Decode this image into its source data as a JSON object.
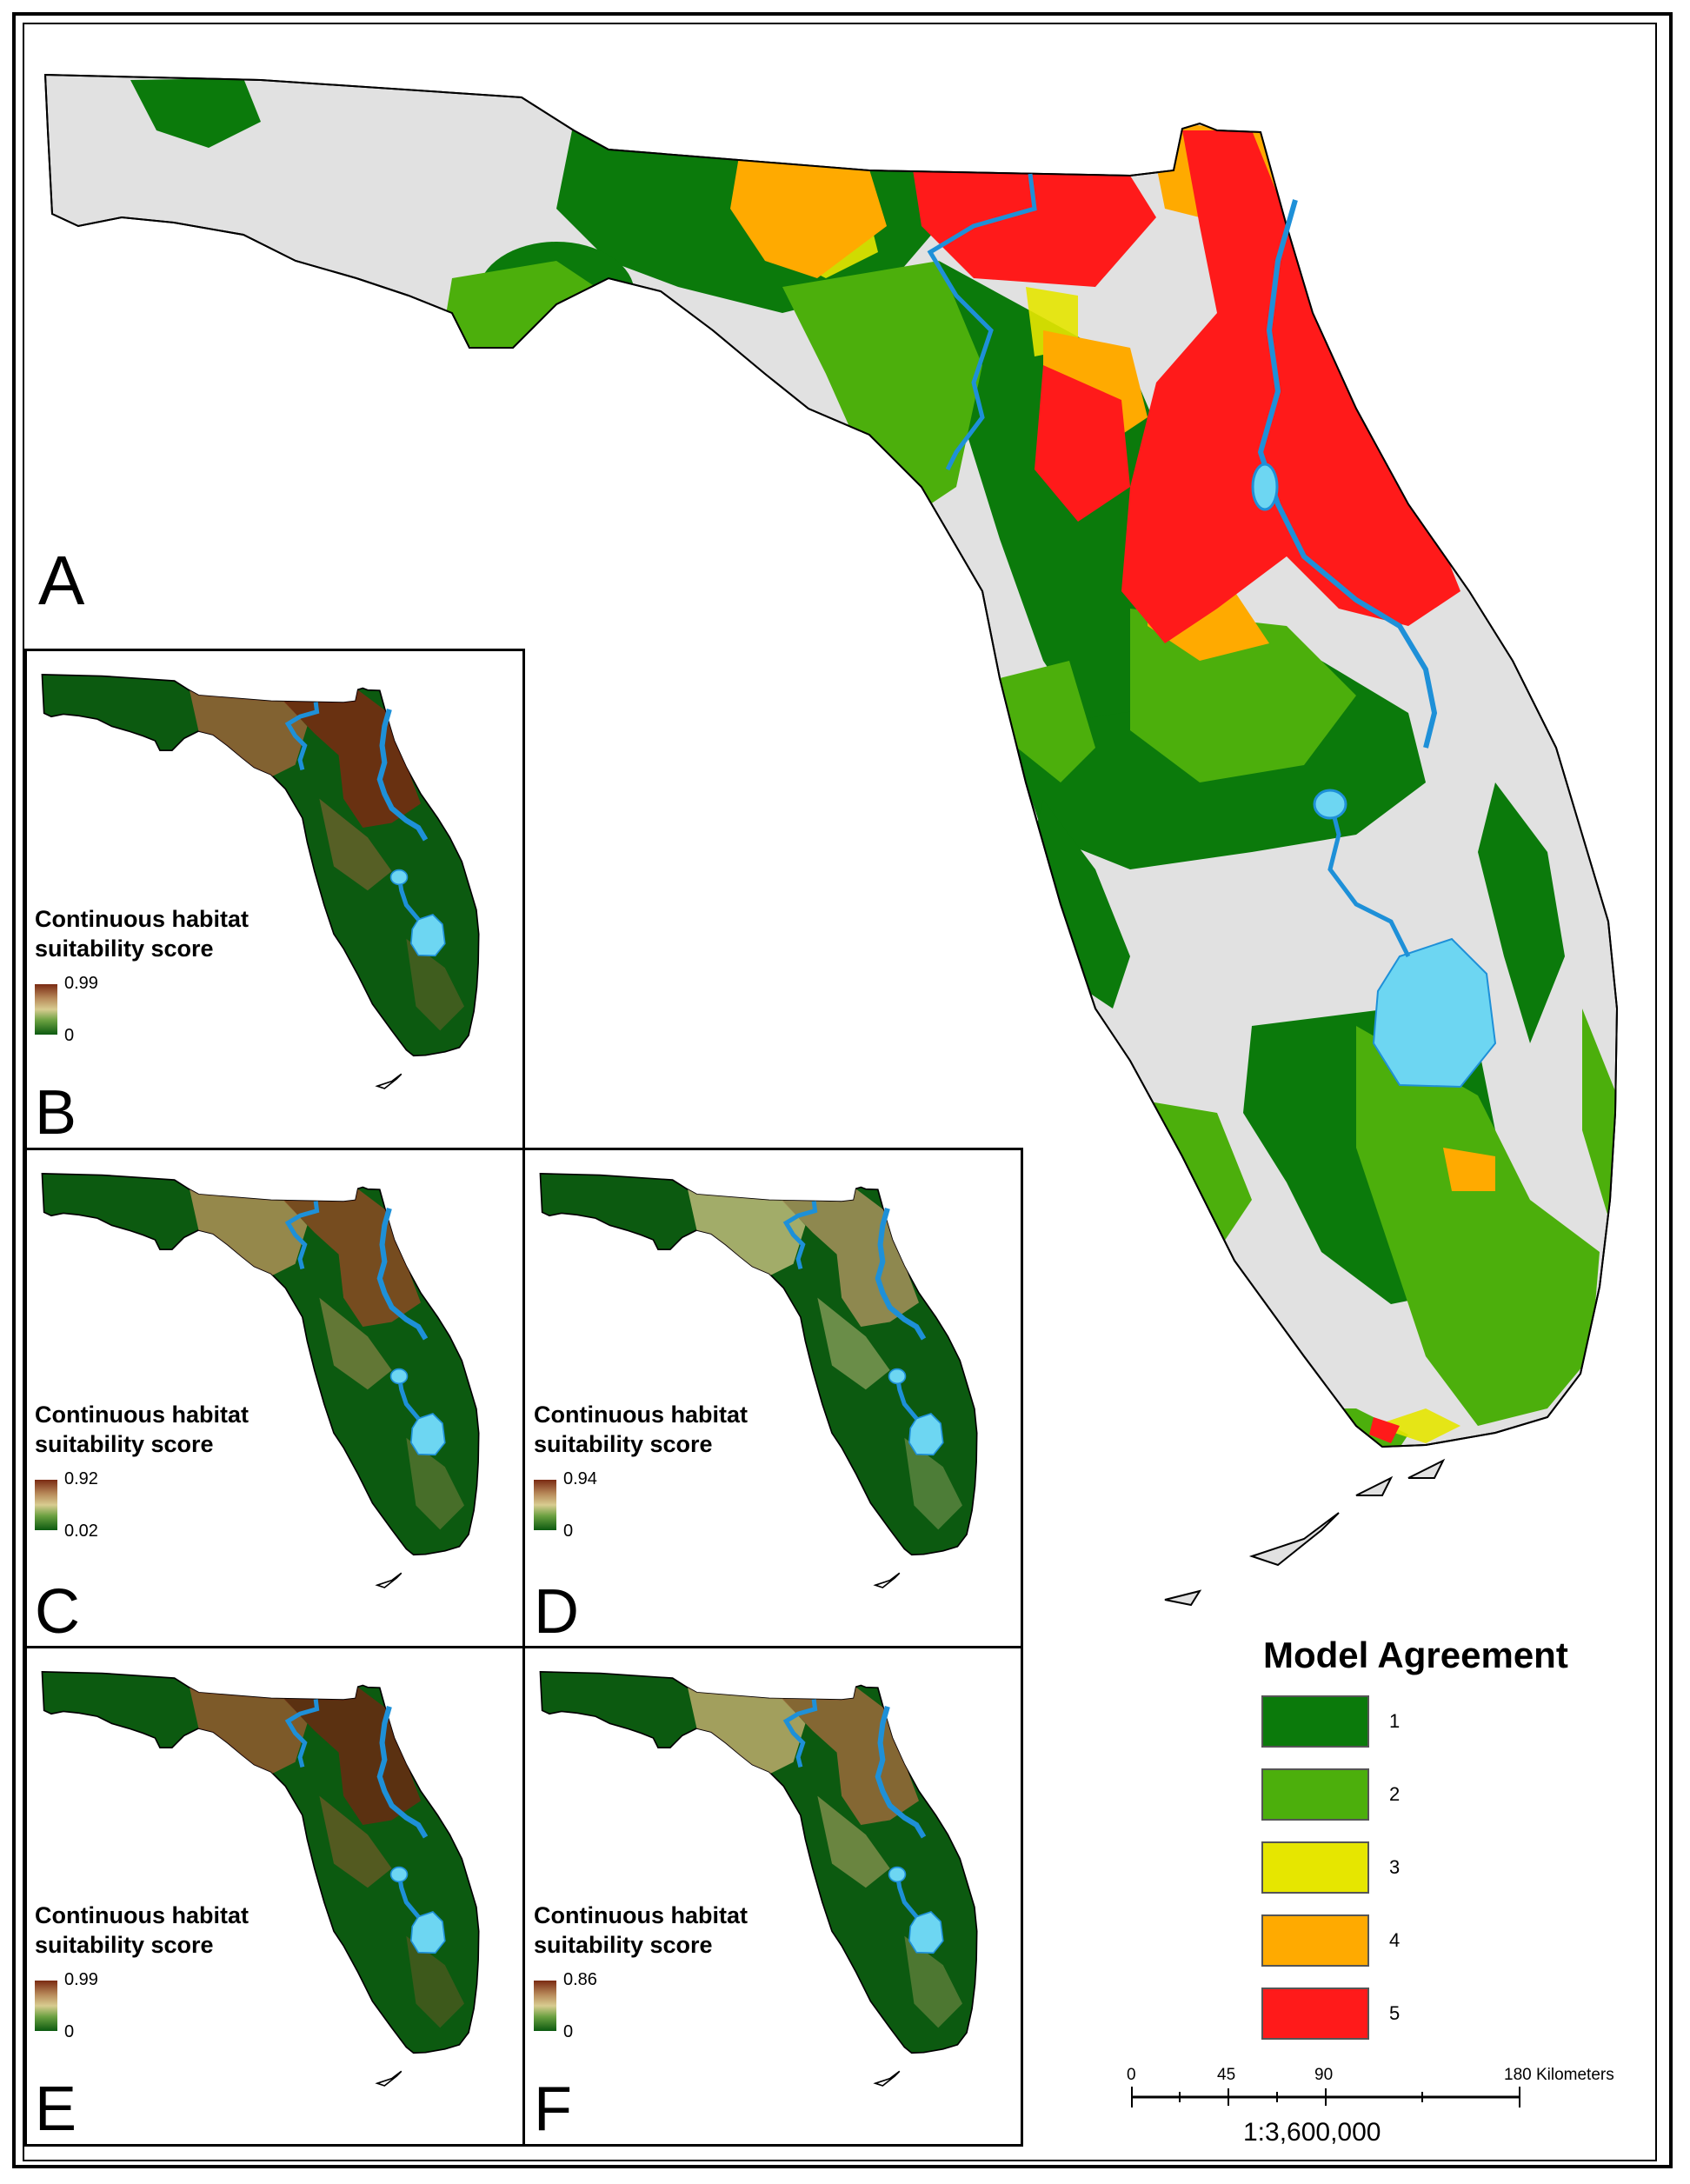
{
  "main_panel": {
    "letter": "A"
  },
  "panels": [
    {
      "letter": "B",
      "title": "Continuous habitat suitability score",
      "max": "0.99",
      "min": "0"
    },
    {
      "letter": "C",
      "title": "Continuous habitat suitability score",
      "max": "0.92",
      "min": "0.02"
    },
    {
      "letter": "D",
      "title": "Continuous habitat suitability score",
      "max": "0.94",
      "min": "0"
    },
    {
      "letter": "E",
      "title": "Continuous habitat suitability score",
      "max": "0.99",
      "min": "0"
    },
    {
      "letter": "F",
      "title": "Continuous habitat suitability score",
      "max": "0.86",
      "min": "0"
    }
  ],
  "legend": {
    "title": "Model Agreement",
    "items": [
      {
        "label": "1",
        "color": "#0b7a0b"
      },
      {
        "label": "2",
        "color": "#4caf0c"
      },
      {
        "label": "3",
        "color": "#e6e600"
      },
      {
        "label": "4",
        "color": "#ffaa00"
      },
      {
        "label": "5",
        "color": "#ff1a1a"
      }
    ]
  },
  "scale_bar": {
    "ticks": [
      "0",
      "45",
      "90",
      "180 Kilometers"
    ],
    "ratio": "1:3,600,000"
  },
  "colors": {
    "land_unsuitable": "#e1e1e1",
    "water": "#1e90d8",
    "lake": "#6dd6f2",
    "suitability_low": "#0c5a10",
    "suitability_high": "#7a2a12"
  }
}
